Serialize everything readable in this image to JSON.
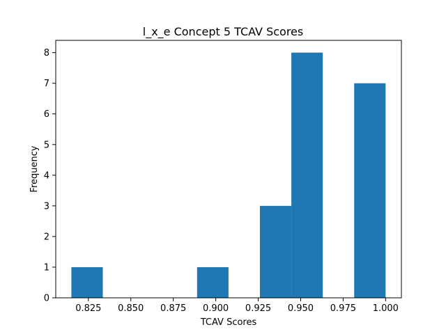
{
  "chart_data": {
    "type": "bar",
    "subtype": "histogram",
    "title": "l_x_e Concept 5 TCAV Scores",
    "xlabel": "TCAV Scores",
    "ylabel": "Frequency",
    "bins": [
      {
        "start": 0.815,
        "end": 0.8335,
        "count": 1
      },
      {
        "start": 0.8335,
        "end": 0.852,
        "count": 0
      },
      {
        "start": 0.852,
        "end": 0.8705,
        "count": 0
      },
      {
        "start": 0.8705,
        "end": 0.889,
        "count": 0
      },
      {
        "start": 0.889,
        "end": 0.9075,
        "count": 1
      },
      {
        "start": 0.9075,
        "end": 0.926,
        "count": 0
      },
      {
        "start": 0.926,
        "end": 0.9445,
        "count": 3
      },
      {
        "start": 0.9445,
        "end": 0.963,
        "count": 8
      },
      {
        "start": 0.963,
        "end": 0.9815,
        "count": 0
      },
      {
        "start": 0.9815,
        "end": 1.0,
        "count": 7
      }
    ],
    "xlim": [
      0.8058,
      1.0093
    ],
    "ylim": [
      0,
      8.4
    ],
    "xticks": [
      0.825,
      0.85,
      0.875,
      0.9,
      0.925,
      0.95,
      0.975,
      1.0
    ],
    "xtick_labels": [
      "0.825",
      "0.850",
      "0.875",
      "0.900",
      "0.925",
      "0.950",
      "0.975",
      "1.000"
    ],
    "yticks": [
      0,
      1,
      2,
      3,
      4,
      5,
      6,
      7,
      8
    ],
    "ytick_labels": [
      "0",
      "1",
      "2",
      "3",
      "4",
      "5",
      "6",
      "7",
      "8"
    ],
    "bar_color": "#1f77b4",
    "grid": false,
    "legend": "none"
  }
}
